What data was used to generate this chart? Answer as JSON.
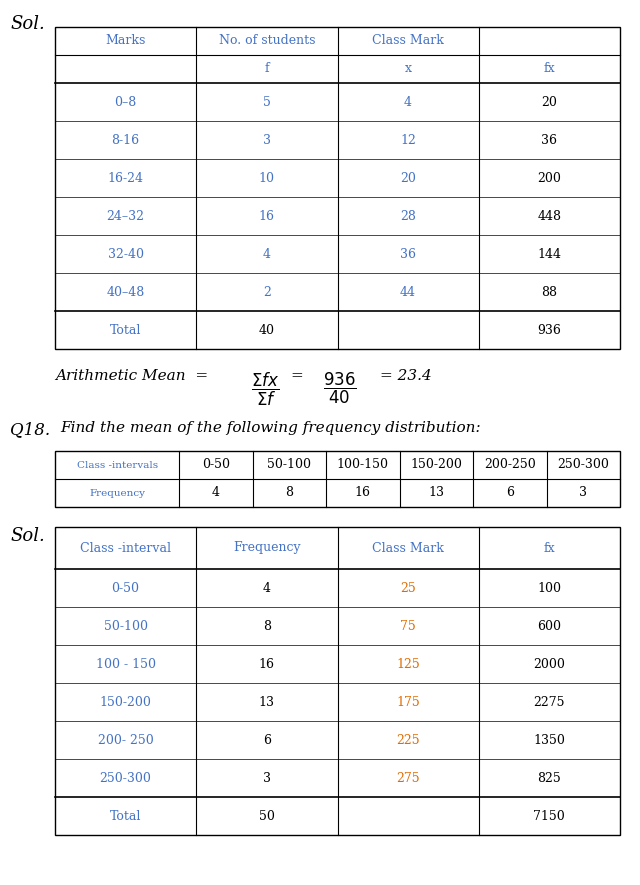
{
  "bg_color": "#ffffff",
  "sol_label": "Sol.",
  "q18_label": "Q18.",
  "sol2_label": "Sol.",
  "arithmetic_mean_text": "Arithmetic Mean = ",
  "mean_formula": "\\frac{\\Sigma fx}{\\Sigma f}",
  "mean_value": "\\frac{936}{40}",
  "mean_result": "= 23.4",
  "q18_text": "Find the mean of the following frequency distribution:",
  "table1": {
    "headers": [
      "Marks",
      "No. of students",
      "Class Mark",
      ""
    ],
    "subheaders": [
      "",
      "f",
      "x",
      "fx"
    ],
    "rows": [
      [
        "0–8",
        "5",
        "4",
        "20"
      ],
      [
        "8-16",
        "3",
        "12",
        "36"
      ],
      [
        "16-24",
        "10",
        "20",
        "200"
      ],
      [
        "24–32",
        "16",
        "28",
        "448"
      ],
      [
        "32-40",
        "4",
        "36",
        "144"
      ],
      [
        "40–48",
        "2",
        "44",
        "88"
      ]
    ],
    "total_row": [
      "Total",
      "40",
      "",
      "936"
    ],
    "header_color": "#4472c4",
    "data_color_marks": "#4472c4",
    "data_color_f": "#4472c4",
    "data_color_x": "#4472c4",
    "data_color_fx": "#000000",
    "total_color": "#4472c4"
  },
  "table2_header": {
    "headers": [
      "Class -intervals",
      "0-50",
      "50-100",
      "100-150",
      "150-200",
      "200-250",
      "250-300"
    ],
    "row": [
      "Frequency",
      "4",
      "8",
      "16",
      "13",
      "6",
      "3"
    ],
    "header_color": "#4472c4",
    "data_color": "#000000"
  },
  "table3": {
    "headers": [
      "Class -interval",
      "Frequency",
      "Class Mark",
      "fx"
    ],
    "rows": [
      [
        "0-50",
        "4",
        "25",
        "100"
      ],
      [
        "50-100",
        "8",
        "75",
        "600"
      ],
      [
        "100 - 150",
        "16",
        "125",
        "2000"
      ],
      [
        "150-200",
        "13",
        "175",
        "2275"
      ],
      [
        "200- 250",
        "6",
        "225",
        "1350"
      ],
      [
        "250-300",
        "3",
        "275",
        "825"
      ]
    ],
    "total_row": [
      "Total",
      "50",
      "",
      "7150"
    ],
    "header_color": "#4472c4",
    "data_color_interval": "#4472c4",
    "data_color_freq": "#000000",
    "data_color_mark": "#e06c00",
    "data_color_fx": "#000000",
    "total_color": "#4472c4"
  }
}
